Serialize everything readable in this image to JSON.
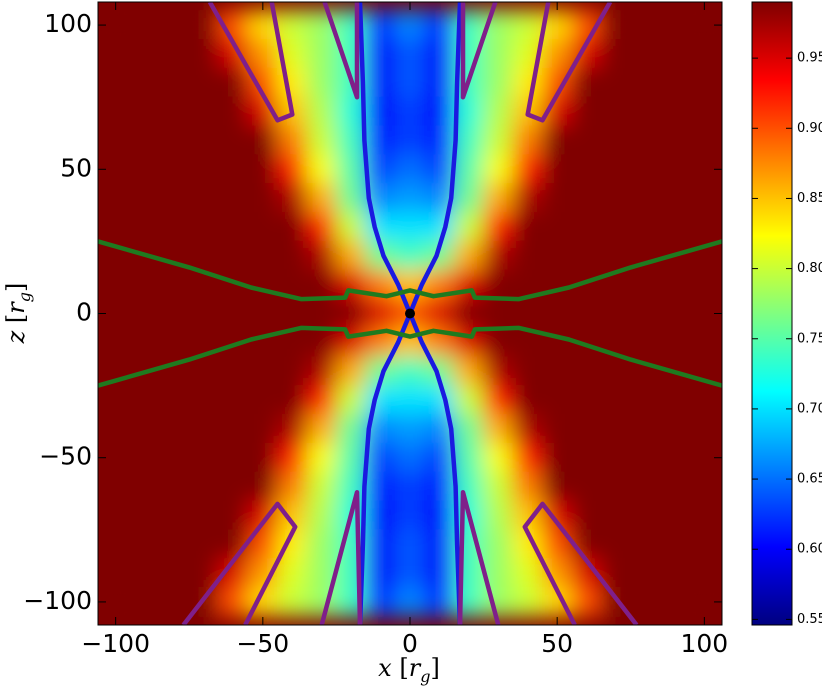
{
  "chart_data": {
    "type": "heatmap",
    "x": [
      -100,
      -90,
      -80,
      -70,
      -60,
      -50,
      -40,
      -30,
      -20,
      -10,
      0,
      10,
      20,
      30,
      40,
      50,
      60,
      70,
      80,
      90,
      100
    ],
    "z": [
      100,
      90,
      80,
      70,
      60,
      50,
      40,
      30,
      20,
      10,
      0,
      -10,
      -20,
      -30,
      -40,
      -50,
      -60,
      -70,
      -80,
      -90,
      -100
    ],
    "values": [
      [
        0.99,
        0.99,
        0.99,
        0.99,
        0.9,
        0.84,
        0.8,
        0.78,
        0.74,
        0.62,
        0.66,
        0.62,
        0.74,
        0.78,
        0.8,
        0.84,
        0.9,
        0.99,
        0.99,
        0.99,
        0.99
      ],
      [
        0.99,
        0.99,
        0.99,
        0.99,
        0.95,
        0.87,
        0.81,
        0.78,
        0.74,
        0.6,
        0.64,
        0.6,
        0.74,
        0.78,
        0.81,
        0.87,
        0.95,
        0.99,
        0.99,
        0.99,
        0.99
      ],
      [
        0.99,
        0.99,
        0.99,
        0.99,
        0.99,
        0.9,
        0.83,
        0.78,
        0.74,
        0.6,
        0.64,
        0.6,
        0.74,
        0.78,
        0.83,
        0.9,
        0.99,
        0.99,
        0.99,
        0.99,
        0.99
      ],
      [
        0.99,
        0.99,
        0.99,
        0.99,
        0.99,
        0.95,
        0.85,
        0.79,
        0.73,
        0.6,
        0.63,
        0.6,
        0.73,
        0.79,
        0.85,
        0.95,
        0.99,
        0.99,
        0.99,
        0.99,
        0.99
      ],
      [
        0.99,
        0.99,
        0.99,
        0.99,
        0.99,
        0.99,
        0.88,
        0.8,
        0.74,
        0.61,
        0.63,
        0.61,
        0.74,
        0.8,
        0.88,
        0.99,
        0.99,
        0.99,
        0.99,
        0.99,
        0.99
      ],
      [
        0.99,
        0.99,
        0.99,
        0.99,
        0.99,
        0.99,
        0.92,
        0.82,
        0.75,
        0.63,
        0.65,
        0.63,
        0.75,
        0.82,
        0.92,
        0.99,
        0.99,
        0.99,
        0.99,
        0.99,
        0.99
      ],
      [
        0.99,
        0.99,
        0.99,
        0.99,
        0.99,
        0.99,
        0.97,
        0.86,
        0.76,
        0.66,
        0.67,
        0.66,
        0.76,
        0.86,
        0.97,
        0.99,
        0.99,
        0.99,
        0.99,
        0.99,
        0.99
      ],
      [
        0.99,
        0.99,
        0.99,
        0.99,
        0.99,
        0.99,
        0.99,
        0.92,
        0.8,
        0.7,
        0.7,
        0.7,
        0.8,
        0.92,
        0.99,
        0.99,
        0.99,
        0.99,
        0.99,
        0.99,
        0.99
      ],
      [
        0.99,
        0.99,
        0.99,
        0.99,
        0.99,
        0.99,
        0.99,
        0.97,
        0.86,
        0.76,
        0.74,
        0.76,
        0.86,
        0.97,
        0.99,
        0.99,
        0.99,
        0.99,
        0.99,
        0.99,
        0.99
      ],
      [
        0.99,
        0.99,
        0.99,
        0.99,
        0.99,
        0.99,
        0.99,
        0.99,
        0.95,
        0.88,
        0.85,
        0.88,
        0.95,
        0.99,
        0.99,
        0.99,
        0.99,
        0.99,
        0.99,
        0.99,
        0.99
      ],
      [
        0.99,
        0.99,
        0.99,
        0.99,
        0.99,
        0.99,
        0.99,
        0.99,
        0.99,
        0.95,
        0.9,
        0.95,
        0.99,
        0.99,
        0.99,
        0.99,
        0.99,
        0.99,
        0.99,
        0.99,
        0.99
      ],
      [
        0.99,
        0.99,
        0.99,
        0.99,
        0.99,
        0.99,
        0.99,
        0.99,
        0.95,
        0.88,
        0.85,
        0.88,
        0.95,
        0.99,
        0.99,
        0.99,
        0.99,
        0.99,
        0.99,
        0.99,
        0.99
      ],
      [
        0.99,
        0.99,
        0.99,
        0.99,
        0.99,
        0.99,
        0.99,
        0.97,
        0.86,
        0.76,
        0.74,
        0.76,
        0.86,
        0.97,
        0.99,
        0.99,
        0.99,
        0.99,
        0.99,
        0.99,
        0.99
      ],
      [
        0.99,
        0.99,
        0.99,
        0.99,
        0.99,
        0.99,
        0.99,
        0.92,
        0.8,
        0.7,
        0.7,
        0.7,
        0.8,
        0.92,
        0.99,
        0.99,
        0.99,
        0.99,
        0.99,
        0.99,
        0.99
      ],
      [
        0.99,
        0.99,
        0.99,
        0.99,
        0.99,
        0.99,
        0.97,
        0.86,
        0.76,
        0.66,
        0.67,
        0.66,
        0.76,
        0.86,
        0.97,
        0.99,
        0.99,
        0.99,
        0.99,
        0.99,
        0.99
      ],
      [
        0.99,
        0.99,
        0.99,
        0.99,
        0.99,
        0.99,
        0.92,
        0.82,
        0.75,
        0.63,
        0.65,
        0.63,
        0.75,
        0.82,
        0.92,
        0.99,
        0.99,
        0.99,
        0.99,
        0.99,
        0.99
      ],
      [
        0.99,
        0.99,
        0.99,
        0.99,
        0.99,
        0.99,
        0.88,
        0.8,
        0.74,
        0.61,
        0.63,
        0.61,
        0.74,
        0.8,
        0.88,
        0.99,
        0.99,
        0.99,
        0.99,
        0.99,
        0.99
      ],
      [
        0.99,
        0.99,
        0.99,
        0.99,
        0.99,
        0.95,
        0.85,
        0.79,
        0.73,
        0.6,
        0.63,
        0.6,
        0.73,
        0.79,
        0.85,
        0.95,
        0.99,
        0.99,
        0.99,
        0.99,
        0.99
      ],
      [
        0.99,
        0.99,
        0.99,
        0.99,
        0.99,
        0.9,
        0.83,
        0.78,
        0.74,
        0.6,
        0.64,
        0.6,
        0.74,
        0.78,
        0.83,
        0.9,
        0.99,
        0.99,
        0.99,
        0.99,
        0.99
      ],
      [
        0.99,
        0.99,
        0.99,
        0.99,
        0.95,
        0.87,
        0.81,
        0.78,
        0.74,
        0.6,
        0.64,
        0.6,
        0.74,
        0.78,
        0.81,
        0.87,
        0.95,
        0.99,
        0.99,
        0.99,
        0.99
      ],
      [
        0.99,
        0.99,
        0.99,
        0.99,
        0.9,
        0.84,
        0.8,
        0.78,
        0.74,
        0.62,
        0.66,
        0.62,
        0.74,
        0.78,
        0.8,
        0.84,
        0.9,
        0.99,
        0.99,
        0.99,
        0.99
      ]
    ],
    "colormap": "jet",
    "clim": [
      0.546,
      0.99
    ],
    "cticks": [
      {
        "value": 0.55,
        "label": "0.55"
      },
      {
        "value": 0.6,
        "label": "0.60"
      },
      {
        "value": 0.65,
        "label": "0.65"
      },
      {
        "value": 0.7,
        "label": "0.70"
      },
      {
        "value": 0.75,
        "label": "0.75"
      },
      {
        "value": 0.8,
        "label": "0.80"
      },
      {
        "value": 0.85,
        "label": "0.85"
      },
      {
        "value": 0.9,
        "label": "0.90"
      },
      {
        "value": 0.95,
        "label": "0.95"
      }
    ],
    "xlim": [
      -106,
      106
    ],
    "ylim": [
      -108,
      108
    ],
    "xticks": [
      {
        "value": -100,
        "label": "−100"
      },
      {
        "value": -50,
        "label": "−50"
      },
      0,
      50,
      100
    ],
    "yticks": [
      {
        "value": -100,
        "label": "−100"
      },
      {
        "value": -50,
        "label": "−50"
      },
      0,
      50,
      100
    ],
    "xlabel": [
      "x",
      " [",
      "r",
      "g",
      "]"
    ],
    "ylabel": [
      "z",
      " [",
      "r",
      "g",
      "]"
    ],
    "contours": [
      {
        "color": "#1a1ae0",
        "x": [
          -17,
          -16,
          -15.5,
          -14,
          -12,
          -9,
          -4,
          0,
          -4,
          -9,
          -12,
          -14,
          -15.5,
          -16,
          -17
        ],
        "z": [
          108,
          80,
          60,
          40,
          30,
          20,
          10,
          0,
          -10,
          -20,
          -30,
          -40,
          -60,
          -80,
          -108
        ]
      },
      {
        "color": "#1a1ae0",
        "x": [
          17,
          16,
          15.5,
          14,
          12,
          9,
          4,
          0,
          4,
          9,
          12,
          14,
          15.5,
          16,
          17
        ],
        "z": [
          108,
          80,
          60,
          40,
          30,
          20,
          10,
          0,
          -10,
          -20,
          -30,
          -40,
          -60,
          -80,
          -108
        ]
      },
      {
        "color": "#7f1f8a",
        "x": [
          -68,
          -45,
          -40,
          -47
        ],
        "z": [
          108,
          67,
          69,
          108
        ]
      },
      {
        "color": "#7f1f8a",
        "x": [
          -29,
          -18,
          -18
        ],
        "z": [
          108,
          75,
          108
        ]
      },
      {
        "color": "#7f1f8a",
        "x": [
          68,
          45,
          40,
          47
        ],
        "z": [
          108,
          67,
          69,
          108
        ]
      },
      {
        "color": "#7f1f8a",
        "x": [
          29,
          18,
          18
        ],
        "z": [
          108,
          75,
          108
        ]
      },
      {
        "color": "#7f1f8a",
        "x": [
          -77,
          -45,
          -39,
          -56
        ],
        "z": [
          -108,
          -66,
          -74,
          -108
        ]
      },
      {
        "color": "#7f1f8a",
        "x": [
          -30,
          -18,
          -17
        ],
        "z": [
          -108,
          -62,
          -108
        ]
      },
      {
        "color": "#7f1f8a",
        "x": [
          77,
          45,
          39,
          56
        ],
        "z": [
          -108,
          -66,
          -74,
          -108
        ]
      },
      {
        "color": "#7f1f8a",
        "x": [
          30,
          18,
          17
        ],
        "z": [
          -108,
          -62,
          -108
        ]
      },
      {
        "color": "#1f7a1f",
        "x": [
          -106,
          -75,
          -54,
          -37,
          -22,
          -21,
          -8,
          0,
          8,
          21,
          22,
          37,
          54,
          75,
          106
        ],
        "z": [
          25,
          16,
          9,
          5,
          5.5,
          8,
          6,
          8,
          6,
          8,
          5.5,
          5,
          9,
          16,
          25
        ]
      },
      {
        "color": "#1f7a1f",
        "x": [
          -106,
          -75,
          -54,
          -37,
          -22,
          -21,
          -8,
          0,
          8,
          21,
          22,
          37,
          54,
          75,
          106
        ],
        "z": [
          -25,
          -16,
          -9,
          -5,
          -5.5,
          -8,
          -6,
          -8,
          -6,
          -8,
          -5.5,
          -5,
          -9,
          -16,
          -25
        ]
      }
    ],
    "marker": {
      "x": 0,
      "z": 0,
      "color": "#000000"
    }
  }
}
